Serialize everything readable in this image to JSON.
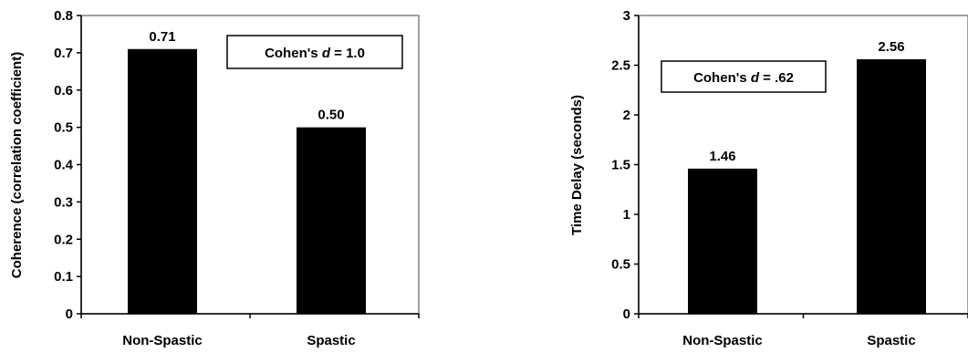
{
  "chart_data": [
    {
      "type": "bar",
      "categories": [
        "Non-Spastic",
        "Spastic"
      ],
      "values": [
        0.71,
        0.5
      ],
      "data_labels": [
        "0.71",
        "0.50"
      ],
      "ylabel": "Coherence (correlation coefficient)",
      "xlabel": "",
      "ylim": [
        0,
        0.8
      ],
      "yticks": [
        0,
        0.1,
        0.2,
        0.3,
        0.4,
        0.5,
        0.6,
        0.7,
        0.8
      ],
      "ytick_labels": [
        "0",
        "0.1",
        "0.2",
        "0.3",
        "0.4",
        "0.5",
        "0.6",
        "0.7",
        "0.8"
      ],
      "annotation": {
        "prefix": "Cohen's ",
        "var": "d",
        "suffix": " = 1.0"
      },
      "bar_color": "#000000",
      "grid": false
    },
    {
      "type": "bar",
      "categories": [
        "Non-Spastic",
        "Spastic"
      ],
      "values": [
        1.46,
        2.56
      ],
      "data_labels": [
        "1.46",
        "2.56"
      ],
      "ylabel": "Time Delay (seconds)",
      "xlabel": "",
      "ylim": [
        0,
        3
      ],
      "yticks": [
        0,
        0.5,
        1,
        1.5,
        2,
        2.5,
        3
      ],
      "ytick_labels": [
        "0",
        "0.5",
        "1",
        "1.5",
        "2",
        "2.5",
        "3"
      ],
      "annotation": {
        "prefix": "Cohen's ",
        "var": "d",
        "suffix": " = .62"
      },
      "bar_color": "#000000",
      "grid": false
    }
  ]
}
